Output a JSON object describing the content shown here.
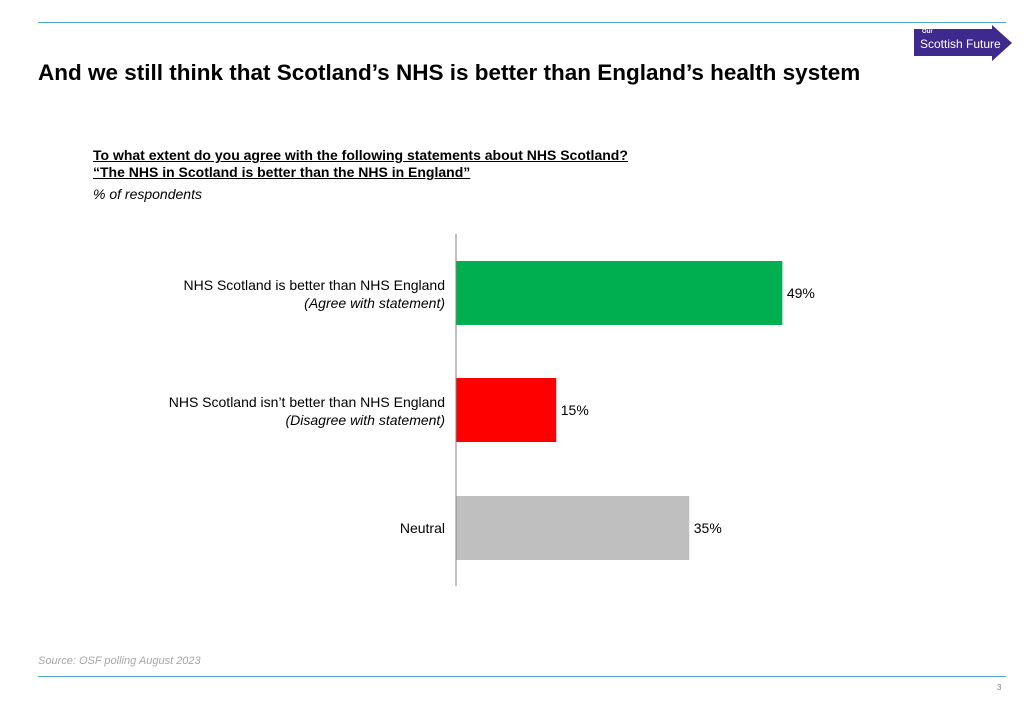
{
  "slide": {
    "title": "And we still think that Scotland’s NHS is better than England’s health system",
    "question_line1": "To what extent do you agree with the following statements about NHS Scotland?",
    "question_line2": "“The NHS in Scotland is better than the NHS in England”",
    "unit": "% of respondents",
    "source": "Source: OSF polling August 2023",
    "page_number": "3"
  },
  "logo": {
    "small_text": "Our",
    "name": "Scottish Future",
    "color": "#3d2a8c",
    "icon": "arrow-logo-icon"
  },
  "chart_data": {
    "type": "bar",
    "orientation": "horizontal",
    "categories": [
      {
        "label": "NHS Scotland is better than NHS England",
        "sublabel": "(Agree with statement)"
      },
      {
        "label": "NHS Scotland isn’t better than NHS England",
        "sublabel": "(Disagree with statement)"
      },
      {
        "label": "Neutral",
        "sublabel": ""
      }
    ],
    "values": [
      49,
      15,
      35
    ],
    "value_labels": [
      "49%",
      "15%",
      "35%"
    ],
    "colors": [
      "#00b050",
      "#ff0000",
      "#bfbfbf"
    ],
    "xlim": [
      0,
      100
    ],
    "grid": false,
    "legend": "none"
  }
}
